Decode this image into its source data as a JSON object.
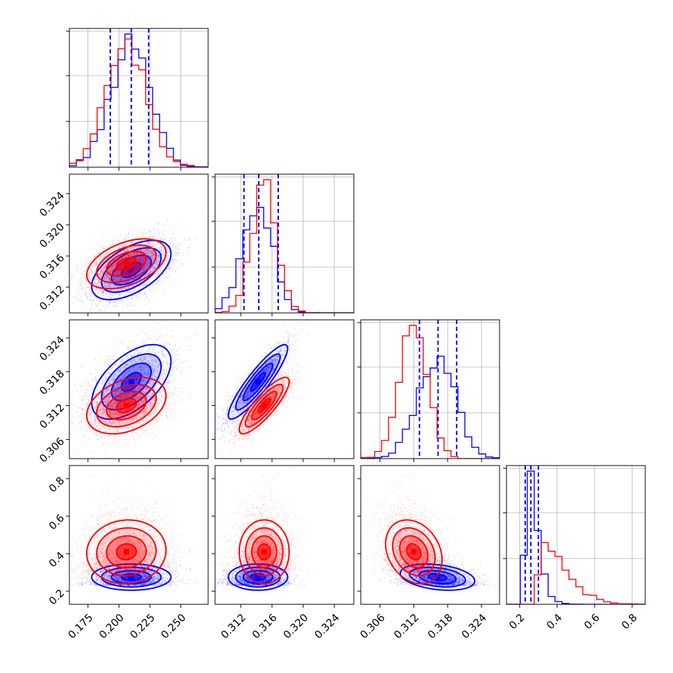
{
  "colors": {
    "red": "#ff0000",
    "blue": "#0000ff"
  },
  "chart_data": {
    "type": "corner",
    "series": [
      {
        "name": "",
        "color": "#0000ff",
        "mean": [
          0.21,
          0.3142,
          0.3162,
          0.275
        ],
        "sd": [
          0.016,
          0.0019,
          0.0033,
          0.035
        ],
        "corr": [
          [
            1,
            0.55,
            0.55,
            0.0
          ],
          [
            0.55,
            1,
            0.9,
            0.0
          ],
          [
            0.55,
            0.9,
            1,
            -0.3
          ],
          [
            0.0,
            0.0,
            -0.3,
            1
          ]
        ]
      },
      {
        "name": "",
        "color": "#ff0000",
        "mean": [
          0.206,
          0.315,
          0.312,
          0.41
        ],
        "sd": [
          0.016,
          0.0016,
          0.0025,
          0.085
        ],
        "corr": [
          [
            1,
            0.45,
            0.35,
            0.05
          ],
          [
            0.45,
            1,
            0.85,
            0.0
          ],
          [
            0.35,
            0.85,
            1,
            -0.25
          ],
          [
            0.05,
            0.0,
            -0.25,
            1
          ]
        ]
      }
    ],
    "quantile_lines": [
      [
        0.193,
        0.21,
        0.224
      ],
      [
        0.3124,
        0.3143,
        0.3168
      ],
      [
        0.313,
        0.3163,
        0.3196
      ],
      [
        0.23,
        0.26,
        0.3
      ]
    ],
    "grid": true,
    "axes": [
      {
        "range": [
          0.16,
          0.272
        ],
        "ticks": [
          0.175,
          0.2,
          0.225,
          0.25
        ],
        "tick_labels": [
          "0.175",
          "0.200",
          "0.225",
          "0.250"
        ]
      },
      {
        "range": [
          0.3087,
          0.3265
        ],
        "ticks": [
          0.312,
          0.316,
          0.32,
          0.324
        ],
        "tick_labels": [
          "0.312",
          "0.316",
          "0.320",
          "0.324"
        ]
      },
      {
        "range": [
          0.3026,
          0.3272
        ],
        "ticks": [
          0.306,
          0.312,
          0.318,
          0.324
        ],
        "tick_labels": [
          "0.306",
          "0.312",
          "0.318",
          "0.324"
        ]
      },
      {
        "range": [
          0.13,
          0.87
        ],
        "ticks": [
          0.2,
          0.4,
          0.6,
          0.8
        ],
        "tick_labels": [
          "0.2",
          "0.4",
          "0.6",
          "0.8"
        ]
      }
    ]
  }
}
